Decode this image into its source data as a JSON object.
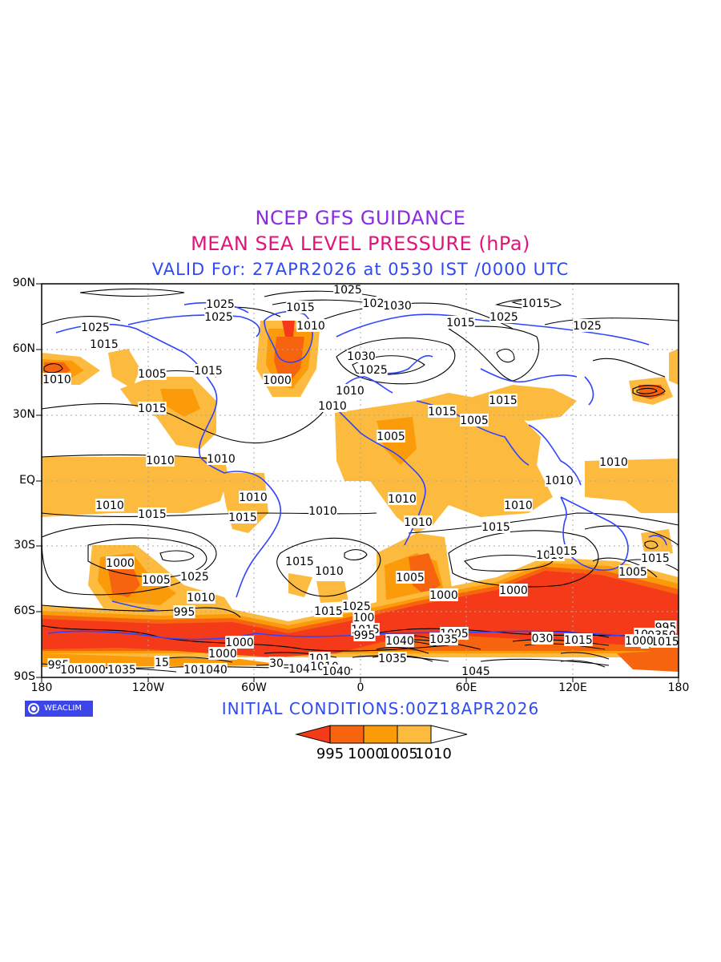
{
  "titles": {
    "line1": "NCEP GFS GUIDANCE",
    "line2": "MEAN SEA LEVEL PRESSURE (hPa)",
    "line3": "VALID For: 27APR2026 at 0530 IST /0000 UTC"
  },
  "colors": {
    "title1": "#8a2be2",
    "title2": "#e0157a",
    "title3": "#2f4bf0",
    "coast": "#2e44ff",
    "lt995": "#f53a1a",
    "r995_1000": "#f7640f",
    "r1000_1005": "#fb9b0a",
    "r1005_1010": "#fcbb3e",
    "gt1010": "#ffffff"
  },
  "axes": {
    "y_labels": [
      "90N",
      "60N",
      "30N",
      "EQ",
      "30S",
      "60S",
      "90S"
    ],
    "x_labels": [
      "180",
      "120W",
      "60W",
      "0",
      "60E",
      "120E",
      "180"
    ]
  },
  "badge": {
    "icon": "copyright-circle-icon",
    "text": "WEACLIM"
  },
  "footer": {
    "initial_conditions": "INITIAL CONDITIONS:00Z18APR2026"
  },
  "legend": {
    "labels": [
      "995",
      "1000",
      "1005",
      "1010"
    ]
  },
  "contour_labels": [
    {
      "id": "l1",
      "text": "1025"
    },
    {
      "id": "l2",
      "text": "1025"
    },
    {
      "id": "l3",
      "text": "1015"
    },
    {
      "id": "l4",
      "text": "102"
    },
    {
      "id": "l5",
      "text": "1030"
    },
    {
      "id": "l6",
      "text": "1015"
    },
    {
      "id": "l7",
      "text": "1025"
    },
    {
      "id": "l8",
      "text": "1010"
    },
    {
      "id": "l9",
      "text": "1015"
    },
    {
      "id": "l10",
      "text": "1025"
    },
    {
      "id": "l11",
      "text": "1025"
    },
    {
      "id": "l12",
      "text": "1025"
    },
    {
      "id": "l13",
      "text": "1015"
    },
    {
      "id": "l14",
      "text": "1030"
    },
    {
      "id": "l15",
      "text": "1025"
    },
    {
      "id": "l16",
      "text": "1010"
    },
    {
      "id": "l17",
      "text": "1005"
    },
    {
      "id": "l18",
      "text": "1015"
    },
    {
      "id": "l19",
      "text": "1000"
    },
    {
      "id": "l20",
      "text": "1010"
    },
    {
      "id": "l21",
      "text": "1015"
    },
    {
      "id": "l22",
      "text": "1010"
    },
    {
      "id": "l23",
      "text": "1015"
    },
    {
      "id": "l24",
      "text": "1005"
    },
    {
      "id": "l25",
      "text": "1015"
    },
    {
      "id": "l26",
      "text": "1005"
    },
    {
      "id": "l27",
      "text": "1010"
    },
    {
      "id": "l28",
      "text": "1010"
    },
    {
      "id": "l29",
      "text": "1010"
    },
    {
      "id": "l30",
      "text": "1010"
    },
    {
      "id": "l31",
      "text": "1010"
    },
    {
      "id": "l32",
      "text": "1010"
    },
    {
      "id": "l33",
      "text": "1015"
    },
    {
      "id": "l34",
      "text": "1010"
    },
    {
      "id": "l35",
      "text": "1015"
    },
    {
      "id": "l36",
      "text": "1010"
    },
    {
      "id": "l37",
      "text": "1010"
    },
    {
      "id": "l38",
      "text": "1010"
    },
    {
      "id": "l39",
      "text": "1015"
    },
    {
      "id": "l40",
      "text": "1010"
    },
    {
      "id": "l41",
      "text": "1015"
    },
    {
      "id": "l42",
      "text": "1000"
    },
    {
      "id": "l43",
      "text": "1005"
    },
    {
      "id": "l44",
      "text": "1025"
    },
    {
      "id": "l45",
      "text": "1010"
    },
    {
      "id": "l46",
      "text": "995"
    },
    {
      "id": "l47",
      "text": "1015"
    },
    {
      "id": "l48",
      "text": "1010"
    },
    {
      "id": "l49",
      "text": "1005"
    },
    {
      "id": "l50",
      "text": "1000"
    },
    {
      "id": "l51",
      "text": "1000"
    },
    {
      "id": "l52",
      "text": "1005"
    },
    {
      "id": "l53",
      "text": "1015"
    },
    {
      "id": "l54",
      "text": "1025"
    },
    {
      "id": "l55",
      "text": "1015"
    },
    {
      "id": "l56",
      "text": "100"
    },
    {
      "id": "l57",
      "text": "1015"
    },
    {
      "id": "l58",
      "text": "1000"
    },
    {
      "id": "l59",
      "text": "995"
    },
    {
      "id": "l60",
      "text": "995"
    },
    {
      "id": "l61",
      "text": "1000"
    },
    {
      "id": "l62",
      "text": "1005"
    },
    {
      "id": "l63",
      "text": "1040"
    },
    {
      "id": "l64",
      "text": "1035"
    },
    {
      "id": "l65",
      "text": "030"
    },
    {
      "id": "l66",
      "text": "1015"
    },
    {
      "id": "l67",
      "text": "0"
    },
    {
      "id": "l68",
      "text": "1045"
    },
    {
      "id": "l69",
      "text": "0350"
    },
    {
      "id": "l70",
      "text": "1015"
    },
    {
      "id": "l71",
      "text": "0"
    },
    {
      "id": "l72",
      "text": "995"
    },
    {
      "id": "l73",
      "text": "1000"
    },
    {
      "id": "l74",
      "text": "1000"
    },
    {
      "id": "l75",
      "text": "1035"
    },
    {
      "id": "l76",
      "text": "15"
    },
    {
      "id": "l77",
      "text": "1005"
    },
    {
      "id": "l78",
      "text": "1040"
    },
    {
      "id": "l79",
      "text": "30"
    },
    {
      "id": "l80",
      "text": "101"
    },
    {
      "id": "l81",
      "text": "1035"
    },
    {
      "id": "l82",
      "text": "1045"
    },
    {
      "id": "l83",
      "text": "1010"
    },
    {
      "id": "l84",
      "text": "1040"
    },
    {
      "id": "l85",
      "text": "1045"
    },
    {
      "id": "l86",
      "text": "1000"
    }
  ]
}
